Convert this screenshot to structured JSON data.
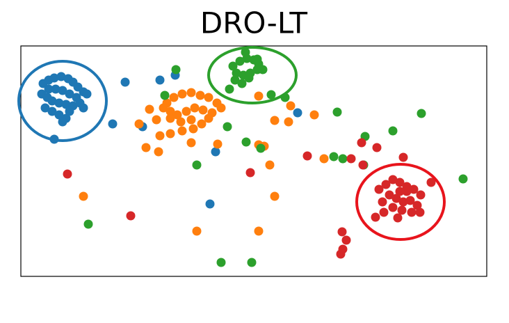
{
  "chart_data": {
    "type": "scatter",
    "title": "DRO-LT",
    "xlim": [
      30,
      700
    ],
    "ylim": [
      0,
      331
    ],
    "series": [
      {
        "color": "#1f77b4",
        "x": [
          62,
          70,
          78,
          88,
          98,
          105,
          112,
          120,
          125,
          60,
          68,
          75,
          85,
          95,
          105,
          115,
          120,
          65,
          75,
          85,
          95,
          100,
          90,
          80,
          100,
          110,
          70,
          90,
          78,
          180,
          230,
          252,
          162,
          205,
          428,
          310,
          302
        ],
        "values": [
          277,
          282,
          285,
          287,
          284,
          279,
          272,
          265,
          262,
          262,
          257,
          252,
          249,
          247,
          245,
          249,
          242,
          242,
          237,
          232,
          227,
          237,
          267,
          269,
          262,
          257,
          269,
          222,
          197,
          279,
          282,
          289,
          219,
          215,
          235,
          179,
          104
        ]
      },
      {
        "color": "#ff7f0e",
        "x": [
          240,
          250,
          262,
          275,
          288,
          300,
          312,
          318,
          245,
          255,
          268,
          280,
          292,
          305,
          245,
          260,
          275,
          290,
          300,
          235,
          215,
          225,
          200,
          230,
          245,
          262,
          278,
          210,
          228,
          275,
          313,
          372,
          380,
          372,
          418,
          395,
          415,
          452,
          388,
          466,
          120,
          395,
          283,
          372
        ],
        "values": [
          249,
          257,
          262,
          264,
          260,
          257,
          249,
          242,
          237,
          232,
          237,
          242,
          239,
          235,
          227,
          222,
          225,
          219,
          227,
          242,
          240,
          225,
          219,
          202,
          205,
          209,
          212,
          185,
          179,
          192,
          190,
          189,
          187,
          259,
          245,
          224,
          222,
          232,
          160,
          169,
          115,
          115,
          65,
          65
        ]
      },
      {
        "color": "#2ca02c",
        "x": [
          335,
          345,
          355,
          365,
          372,
          378,
          340,
          350,
          360,
          370,
          338,
          348,
          358,
          330,
          353,
          370,
          253,
          237,
          390,
          410,
          485,
          606,
          327,
          354,
          375,
          283,
          525,
          565,
          480,
          493,
          523,
          666,
          127,
          318,
          362
        ],
        "values": [
          302,
          309,
          313,
          311,
          305,
          297,
          292,
          289,
          292,
          297,
          282,
          277,
          285,
          269,
          322,
          312,
          297,
          260,
          261,
          257,
          236,
          234,
          215,
          193,
          184,
          160,
          201,
          209,
          172,
          169,
          160,
          140,
          75,
          20,
          20
        ]
      },
      {
        "color": "#d62728",
        "x": [
          545,
          555,
          565,
          575,
          585,
          595,
          605,
          560,
          570,
          580,
          590,
          600,
          550,
          565,
          578,
          592,
          620,
          540,
          552,
          572,
          604,
          585,
          575,
          520,
          542,
          580,
          442,
          505,
          522,
          360,
          97,
          188,
          492,
          498,
          490,
          493
        ],
        "values": [
          125,
          132,
          139,
          135,
          129,
          125,
          117,
          117,
          112,
          107,
          109,
          102,
          107,
          99,
          95,
          92,
          135,
          85,
          92,
          84,
          92,
          122,
          122,
          192,
          185,
          171,
          173,
          169,
          160,
          149,
          147,
          87,
          64,
          52,
          32,
          39
        ]
      }
    ]
  }
}
